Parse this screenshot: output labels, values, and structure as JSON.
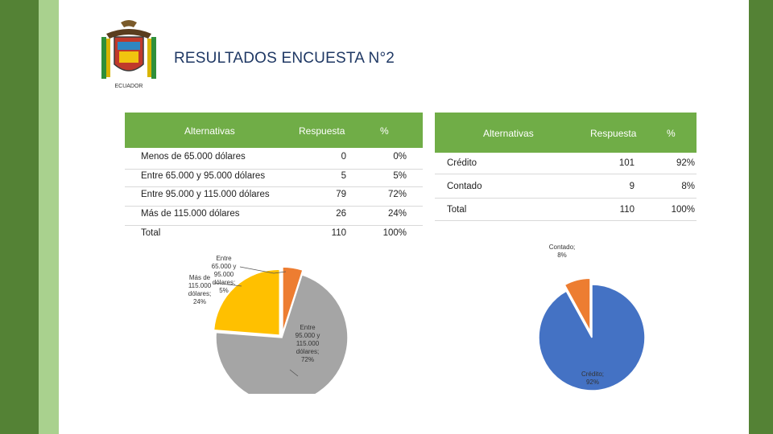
{
  "header": {
    "title": "RESULTADOS ENCUESTA N°2",
    "logo_caption": "ECUADOR"
  },
  "table1": {
    "headers": [
      "Alternativas",
      "Respuesta",
      "%"
    ],
    "rows": [
      {
        "label": "Menos de 65.000 dólares",
        "respuesta": "0",
        "pct": "0%"
      },
      {
        "label": "Entre 65.000 y 95.000 dólares",
        "respuesta": "5",
        "pct": "5%"
      },
      {
        "label": "Entre 95.000 y 115.000 dólares",
        "respuesta": "79",
        "pct": "72%"
      },
      {
        "label": "Más de 115.000 dólares",
        "respuesta": "26",
        "pct": "24%"
      },
      {
        "label": "Total",
        "respuesta": "110",
        "pct": "100%"
      }
    ]
  },
  "table2": {
    "headers": [
      "Alternativas",
      "Respuesta",
      "%"
    ],
    "rows": [
      {
        "label": "Crédito",
        "respuesta": "101",
        "pct": "92%"
      },
      {
        "label": "Contado",
        "respuesta": "9",
        "pct": "8%"
      },
      {
        "label": "Total",
        "respuesta": "110",
        "pct": "100%"
      }
    ]
  },
  "colors": {
    "green_dark": "#548235",
    "green_light": "#a9d18e",
    "table_header": "#70ad47",
    "title": "#1f3864",
    "pie_blue": "#4472c4",
    "pie_orange": "#ed7d31",
    "pie_gray": "#a5a5a5",
    "pie_yellow": "#ffc000"
  },
  "chart_data": [
    {
      "type": "pie",
      "title": "",
      "slices": [
        {
          "label_lines": [
            "Menos de",
            "65.000",
            "dólares;",
            "0%"
          ],
          "value": 0,
          "color": "#4472c4",
          "show_label": false
        },
        {
          "label_lines": [
            "Entre",
            "65.000 y",
            "95.000",
            "dólares;",
            "5%"
          ],
          "value": 5,
          "color": "#ed7d31",
          "show_label": true
        },
        {
          "label_lines": [
            "Entre",
            "95.000 y",
            "115.000",
            "dólares;",
            "72%"
          ],
          "value": 72,
          "color": "#a5a5a5",
          "show_label": true
        },
        {
          "label_lines": [
            "Más de",
            "115.000",
            "dólares;",
            "24%"
          ],
          "value": 24,
          "color": "#ffc000",
          "show_label": true
        }
      ]
    },
    {
      "type": "pie",
      "title": "",
      "slices": [
        {
          "label_lines": [
            "Crédito;",
            "92%"
          ],
          "value": 92,
          "color": "#4472c4",
          "show_label": true
        },
        {
          "label_lines": [
            "Contado;",
            "8%"
          ],
          "value": 8,
          "color": "#ed7d31",
          "show_label": true
        }
      ]
    }
  ]
}
